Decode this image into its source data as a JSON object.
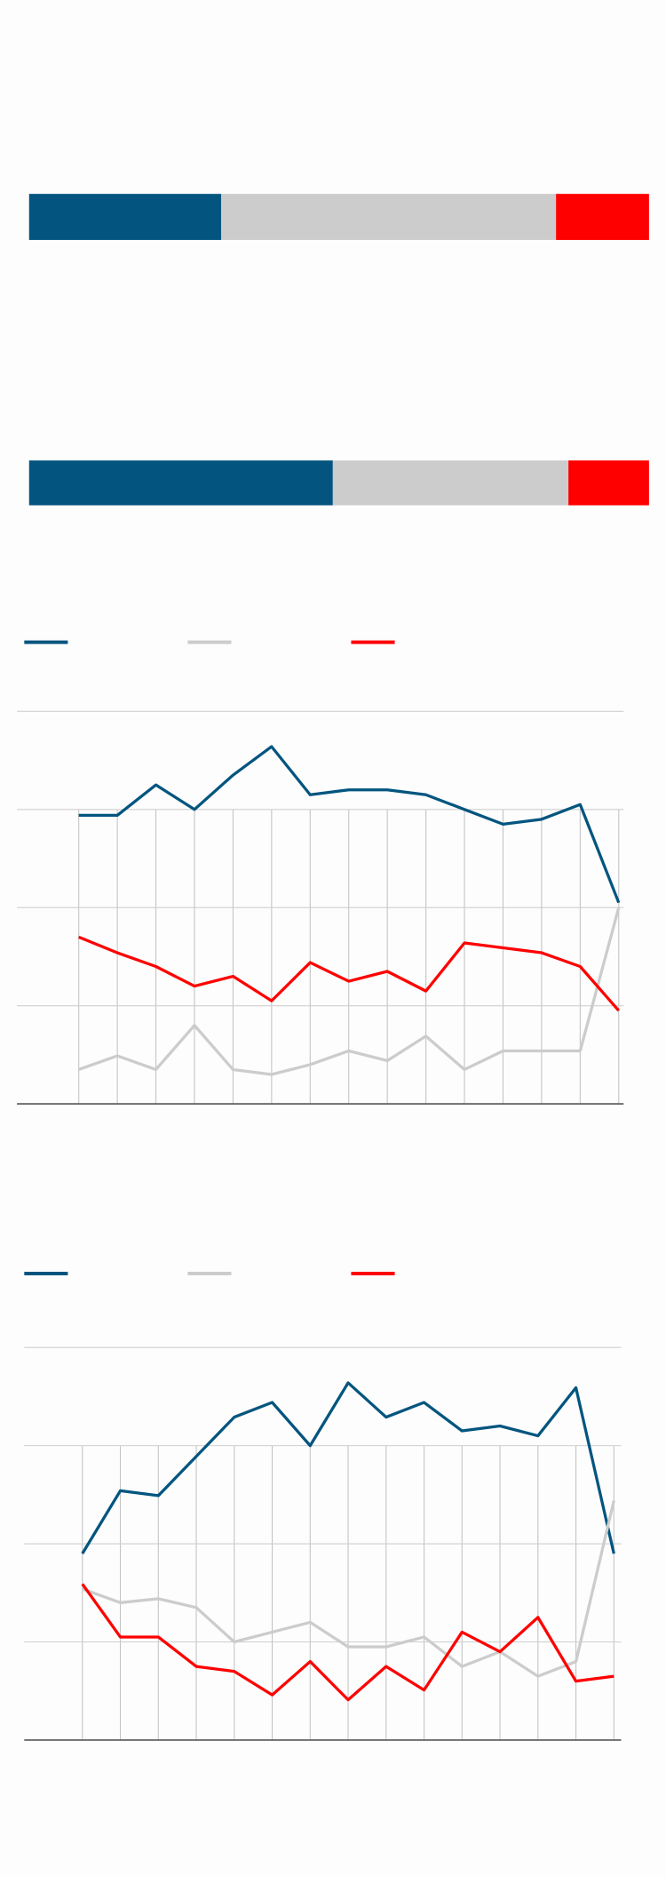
{
  "chart_data": [
    {
      "type": "stacked-bar",
      "orientation": "horizontal",
      "categories": [
        null
      ],
      "xlim": [
        0,
        100
      ],
      "series": [
        {
          "color": "#03557f",
          "values": [
            31
          ]
        },
        {
          "color": "#cccccc",
          "values": [
            54
          ]
        },
        {
          "color": "#ff0000",
          "values": [
            15
          ]
        }
      ]
    },
    {
      "type": "stacked-bar",
      "orientation": "horizontal",
      "categories": [
        null
      ],
      "xlim": [
        0,
        100
      ],
      "series": [
        {
          "color": "#03557f",
          "values": [
            49
          ]
        },
        {
          "color": "#cccccc",
          "values": [
            38
          ]
        },
        {
          "color": "#ff0000",
          "values": [
            13
          ]
        }
      ]
    },
    {
      "type": "line",
      "categories": [
        null,
        null,
        null,
        null,
        null,
        null,
        null,
        null,
        null,
        null,
        null,
        null,
        null,
        null,
        null
      ],
      "ylim": [
        0,
        40
      ],
      "yticks": [
        0,
        10,
        20,
        30,
        40
      ],
      "grid": true,
      "legend": "top-left",
      "series": [
        {
          "color": "#03557f",
          "values": [
            29.4,
            29.4,
            32.5,
            30.0,
            33.5,
            36.4,
            31.5,
            32.0,
            32.0,
            31.5,
            30.0,
            28.5,
            29.0,
            30.5,
            20.5
          ]
        },
        {
          "color": "#cccccc",
          "values": [
            3.5,
            4.9,
            3.5,
            8.0,
            3.5,
            3.0,
            4.0,
            5.4,
            4.4,
            6.9,
            3.5,
            5.4,
            5.4,
            5.4,
            20.0
          ]
        },
        {
          "color": "#ff0000",
          "values": [
            17.0,
            15.4,
            14.0,
            12.0,
            13.0,
            10.5,
            14.4,
            12.5,
            13.5,
            11.5,
            16.4,
            15.9,
            15.4,
            14.0,
            9.5
          ]
        }
      ]
    },
    {
      "type": "line",
      "categories": [
        null,
        null,
        null,
        null,
        null,
        null,
        null,
        null,
        null,
        null,
        null,
        null,
        null,
        null,
        null
      ],
      "ylim": [
        0,
        40
      ],
      "yticks": [
        0,
        10,
        20,
        30,
        40
      ],
      "grid": true,
      "legend": "top-left",
      "series": [
        {
          "color": "#03557f",
          "values": [
            19.0,
            25.4,
            24.9,
            28.9,
            32.9,
            34.4,
            30.0,
            36.4,
            32.9,
            34.4,
            31.5,
            32.0,
            31.0,
            35.9,
            19.0
          ]
        },
        {
          "color": "#cccccc",
          "values": [
            15.4,
            14.0,
            14.4,
            13.5,
            10.0,
            11.0,
            12.0,
            9.5,
            9.5,
            10.5,
            7.5,
            9.0,
            6.5,
            8.0,
            24.4
          ]
        },
        {
          "color": "#ff0000",
          "values": [
            15.9,
            10.5,
            10.5,
            7.5,
            7.0,
            4.6,
            8.0,
            4.1,
            7.5,
            5.1,
            11.0,
            9.0,
            12.5,
            6.0,
            6.5
          ]
        }
      ]
    }
  ]
}
